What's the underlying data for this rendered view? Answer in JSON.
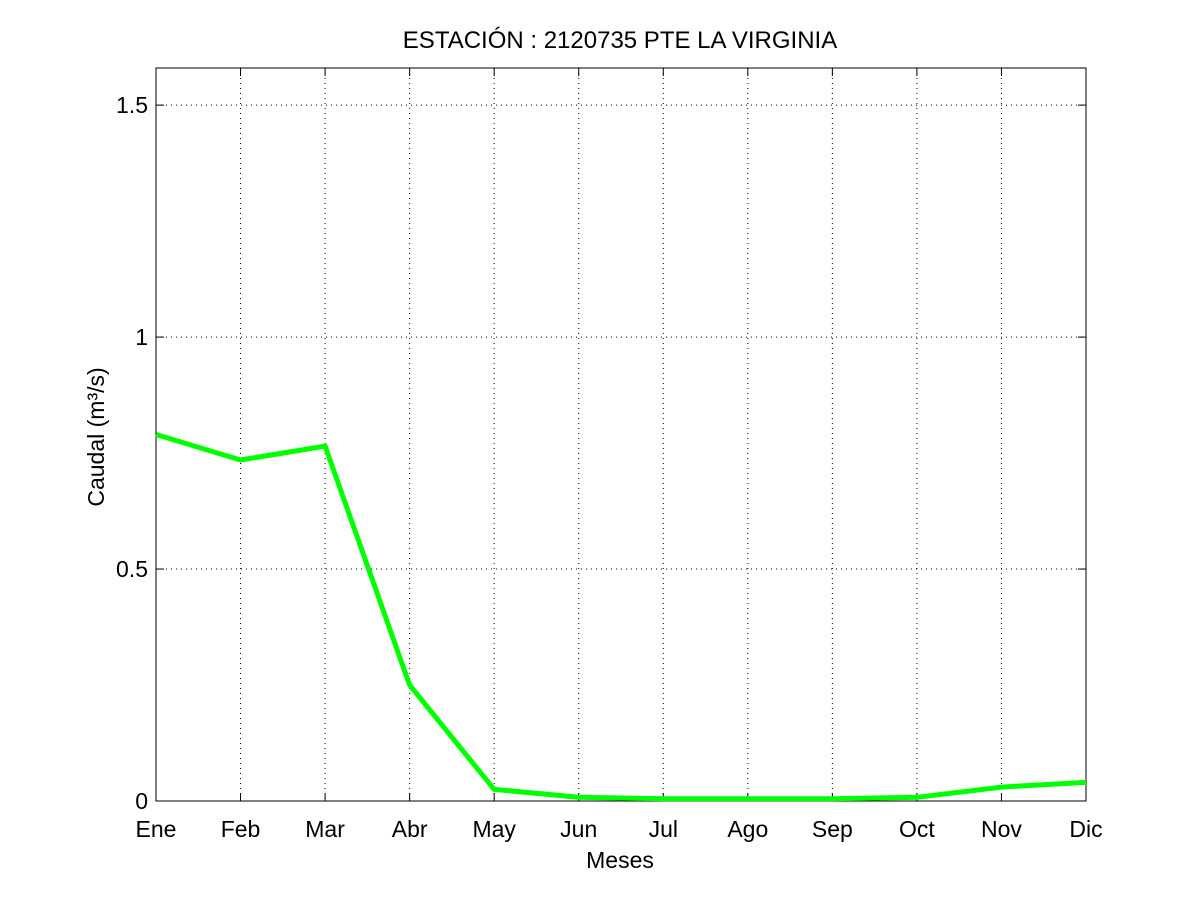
{
  "chart_data": {
    "type": "line",
    "title": "ESTACIÓN :  2120735  PTE LA VIRGINIA",
    "xlabel": "Meses",
    "ylabel": "Caudal (m³/s)",
    "categories": [
      "Ene",
      "Feb",
      "Mar",
      "Abr",
      "May",
      "Jun",
      "Jul",
      "Ago",
      "Sep",
      "Oct",
      "Nov",
      "Dic"
    ],
    "series": [
      {
        "values": [
          0.79,
          0.735,
          0.765,
          0.25,
          0.025,
          0.008,
          0.005,
          0.005,
          0.005,
          0.008,
          0.03,
          0.04
        ],
        "color": "#00ff00"
      }
    ],
    "ylim": [
      0,
      1.58
    ],
    "yticks": [
      0,
      0.5,
      1,
      1.5
    ],
    "ytick_labels": [
      "0",
      "0.5",
      "1",
      "1.5"
    ],
    "grid": true,
    "legend": "none"
  }
}
